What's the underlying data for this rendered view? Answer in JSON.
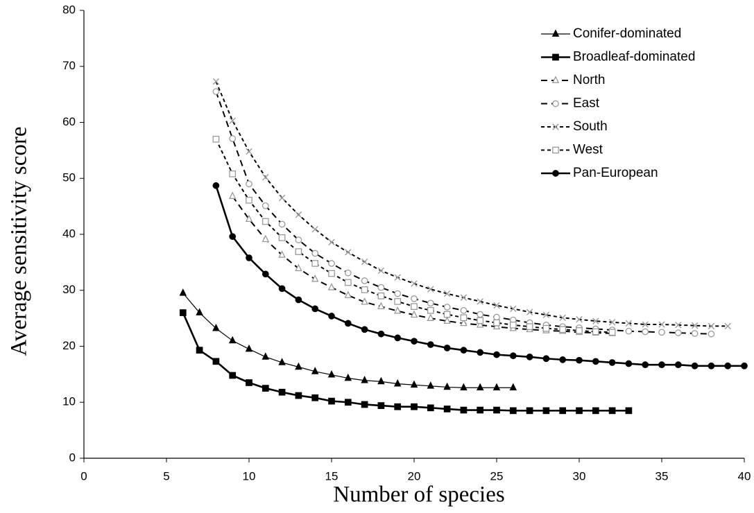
{
  "chart_data": {
    "type": "line",
    "x_label": "Number of species",
    "y_label": "Average sensitivity score",
    "xlim": [
      0,
      40
    ],
    "xticks": [
      0,
      5,
      10,
      15,
      20,
      25,
      30,
      35,
      40
    ],
    "ylim": [
      0,
      80
    ],
    "yticks": [
      0,
      10,
      20,
      30,
      40,
      50,
      60,
      70,
      80
    ],
    "grid": false,
    "legend": "upper right",
    "series": [
      {
        "name": "Conifer-dominated",
        "color": "#000000",
        "marker": "triangle-filled",
        "line_style": "solid-thin",
        "x": [
          6,
          7,
          8,
          9,
          10,
          11,
          12,
          13,
          14,
          15,
          16,
          17,
          18,
          19,
          20,
          21,
          22,
          23,
          24,
          25,
          26
        ],
        "values": [
          29.5,
          26,
          23.2,
          21,
          19.5,
          18.1,
          17.1,
          16.3,
          15.5,
          14.9,
          14.3,
          13.9,
          13.7,
          13.3,
          13.1,
          12.9,
          12.7,
          12.6,
          12.6,
          12.6,
          12.6
        ]
      },
      {
        "name": "Broadleaf-dominated",
        "color": "#000000",
        "marker": "square-filled",
        "line_style": "solid-thick",
        "x": [
          6,
          7,
          8,
          9,
          10,
          11,
          12,
          13,
          14,
          15,
          16,
          17,
          18,
          19,
          20,
          21,
          22,
          23,
          24,
          25,
          26,
          27,
          28,
          29,
          30,
          31,
          32,
          33
        ],
        "values": [
          26,
          19.3,
          17.3,
          14.8,
          13.5,
          12.5,
          11.8,
          11.2,
          10.8,
          10.2,
          10,
          9.6,
          9.4,
          9.2,
          9.2,
          9,
          8.8,
          8.6,
          8.6,
          8.6,
          8.5,
          8.5,
          8.5,
          8.5,
          8.5,
          8.5,
          8.5,
          8.5
        ]
      },
      {
        "name": "North",
        "color": "#000000",
        "marker": "triangle-open",
        "line_style": "dashed-long",
        "x": [
          9,
          10,
          11,
          12,
          13,
          14,
          15,
          16,
          17,
          18,
          19,
          20,
          21,
          22,
          23,
          24,
          25,
          26,
          27,
          28,
          29,
          30,
          31,
          32
        ],
        "values": [
          46.8,
          42.7,
          39.1,
          36.3,
          33.9,
          32,
          30.5,
          29.1,
          27.9,
          27.1,
          26.3,
          25.6,
          25,
          24.5,
          24.1,
          23.8,
          23.5,
          23.2,
          23,
          22.8,
          22.7,
          22.5,
          22.4,
          22.3
        ]
      },
      {
        "name": "East",
        "color": "#000000",
        "marker": "circle-open",
        "line_style": "dashed-long",
        "x": [
          8,
          9,
          10,
          11,
          12,
          13,
          14,
          15,
          16,
          17,
          18,
          19,
          20,
          21,
          22,
          23,
          24,
          25,
          26,
          27,
          28,
          29,
          30,
          31,
          32,
          33,
          34,
          35,
          36,
          37,
          38
        ],
        "values": [
          65.5,
          57.1,
          49,
          45.1,
          41.8,
          39,
          36.6,
          34.8,
          33.1,
          31.7,
          30.5,
          29.4,
          28.5,
          27.7,
          27,
          26.4,
          25.7,
          25.2,
          24.7,
          24.2,
          23.8,
          23.5,
          23.3,
          23.1,
          22.9,
          22.7,
          22.6,
          22.5,
          22.4,
          22.3,
          22.2
        ]
      },
      {
        "name": "South",
        "color": "#000000",
        "marker": "cross",
        "line_style": "dashed-short",
        "x": [
          8,
          9,
          10,
          11,
          12,
          13,
          14,
          15,
          16,
          17,
          18,
          19,
          20,
          21,
          22,
          23,
          24,
          25,
          26,
          27,
          28,
          29,
          30,
          31,
          32,
          33,
          34,
          35,
          36,
          37,
          38,
          39
        ],
        "values": [
          67.3,
          60.3,
          54.8,
          50.2,
          46.5,
          43.5,
          40.9,
          38.6,
          36.8,
          35.1,
          33.5,
          32.3,
          31.2,
          30.2,
          29.4,
          28.7,
          28,
          27.3,
          26.7,
          26.1,
          25.6,
          25.1,
          24.8,
          24.5,
          24.3,
          24.1,
          23.9,
          23.9,
          23.8,
          23.7,
          23.6,
          23.6
        ]
      },
      {
        "name": "West",
        "color": "#000000",
        "marker": "square-open",
        "line_style": "dashed-short",
        "x": [
          8,
          9,
          10,
          11,
          12,
          13,
          14,
          15,
          16,
          17,
          18,
          19,
          20,
          21,
          22,
          23,
          24,
          25,
          26,
          27,
          28,
          29,
          30,
          31,
          32
        ],
        "values": [
          57,
          50.8,
          46.1,
          42.3,
          39.4,
          36.9,
          34.8,
          33,
          31.4,
          30.1,
          29,
          28,
          27.1,
          26.4,
          25.7,
          25.1,
          24.6,
          24.2,
          23.8,
          23.5,
          23.2,
          23,
          22.8,
          22.6,
          22.5
        ]
      },
      {
        "name": "Pan-European",
        "color": "#000000",
        "marker": "circle-filled",
        "line_style": "solid-thick",
        "x": [
          8,
          9,
          10,
          11,
          12,
          13,
          14,
          15,
          16,
          17,
          18,
          19,
          20,
          21,
          22,
          23,
          24,
          25,
          26,
          27,
          28,
          29,
          30,
          31,
          32,
          33,
          34,
          35,
          36,
          37,
          38,
          39,
          40
        ],
        "values": [
          48.7,
          39.6,
          35.8,
          32.9,
          30.3,
          28.3,
          26.7,
          25.4,
          24.1,
          23,
          22.2,
          21.5,
          20.9,
          20.3,
          19.7,
          19.3,
          18.9,
          18.5,
          18.3,
          18.1,
          17.8,
          17.6,
          17.5,
          17.3,
          17.1,
          16.9,
          16.7,
          16.7,
          16.7,
          16.5,
          16.5,
          16.5,
          16.5
        ]
      }
    ]
  }
}
